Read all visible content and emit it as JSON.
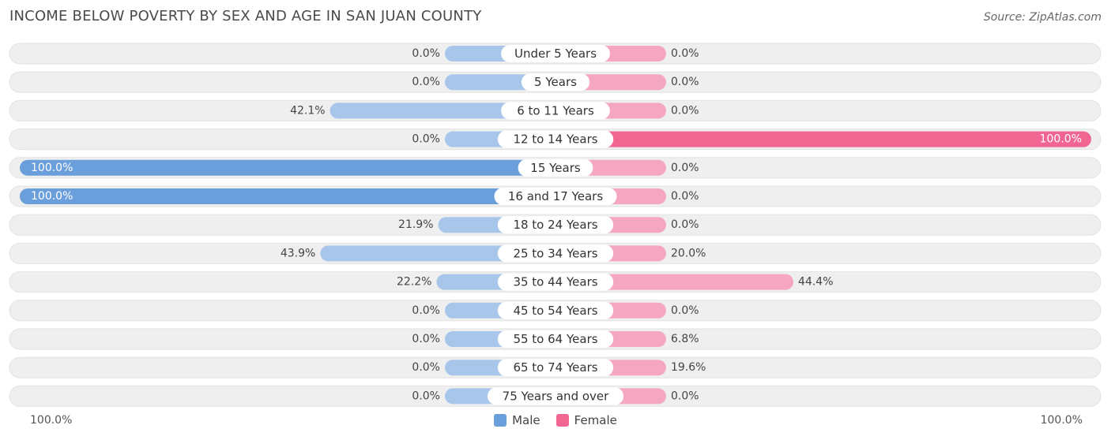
{
  "title": "INCOME BELOW POVERTY BY SEX AND AGE IN SAN JUAN COUNTY",
  "source": "Source: ZipAtlas.com",
  "colors": {
    "male": "#6a9fdc",
    "male_light": "#a8c6ea",
    "female": "#f06592",
    "female_light": "#f5a7c1",
    "track": "#efefef"
  },
  "legend": {
    "male": "Male",
    "female": "Female"
  },
  "axis": {
    "left_label": "100.0%",
    "right_label": "100.0%"
  },
  "chart_data": {
    "type": "bar",
    "orientation": "horizontal-diverging",
    "title": "INCOME BELOW POVERTY BY SEX AND AGE IN SAN JUAN COUNTY",
    "categories": [
      "Under 5 Years",
      "5 Years",
      "6 to 11 Years",
      "12 to 14 Years",
      "15 Years",
      "16 and 17 Years",
      "18 to 24 Years",
      "25 to 34 Years",
      "35 to 44 Years",
      "45 to 54 Years",
      "55 to 64 Years",
      "65 to 74 Years",
      "75 Years and over"
    ],
    "series": [
      {
        "name": "Male",
        "values": [
          0.0,
          0.0,
          42.1,
          0.0,
          100.0,
          100.0,
          21.9,
          43.9,
          22.2,
          0.0,
          0.0,
          0.0,
          0.0
        ],
        "labels": [
          "0.0%",
          "0.0%",
          "42.1%",
          "0.0%",
          "100.0%",
          "100.0%",
          "21.9%",
          "43.9%",
          "22.2%",
          "0.0%",
          "0.0%",
          "0.0%",
          "0.0%"
        ]
      },
      {
        "name": "Female",
        "values": [
          0.0,
          0.0,
          0.0,
          100.0,
          0.0,
          0.0,
          0.0,
          20.0,
          44.4,
          0.0,
          6.8,
          19.6,
          0.0
        ],
        "labels": [
          "0.0%",
          "0.0%",
          "0.0%",
          "100.0%",
          "0.0%",
          "0.0%",
          "0.0%",
          "20.0%",
          "44.4%",
          "0.0%",
          "6.8%",
          "19.6%",
          "0.0%"
        ]
      }
    ],
    "xlim": [
      -100,
      100
    ],
    "legend": "bottom-center"
  }
}
